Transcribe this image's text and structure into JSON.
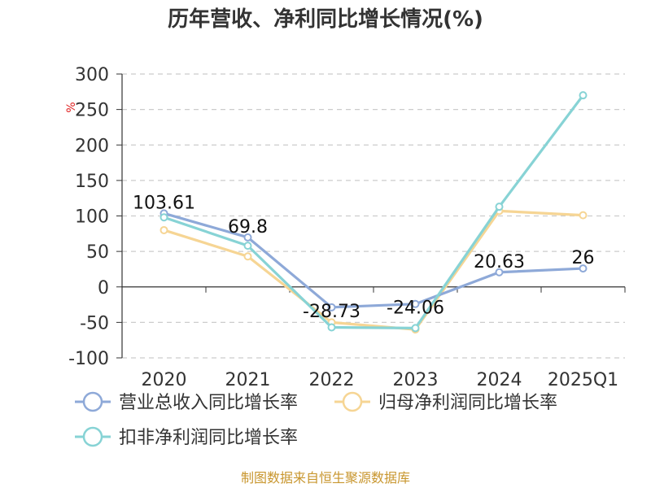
{
  "chart_data": {
    "type": "line",
    "title": "历年营收、净利同比增长情况(%)",
    "ylabel": "%",
    "xlabel": "",
    "categories": [
      "2020",
      "2021",
      "2022",
      "2023",
      "2024",
      "2025Q1"
    ],
    "ylim": [
      -100,
      300
    ],
    "yticks": [
      300,
      250,
      200,
      150,
      100,
      50,
      0,
      -50,
      -100
    ],
    "grid": true,
    "legend_position": "bottom",
    "series": [
      {
        "name": "营业总收入同比增长率",
        "values": [
          103.61,
          69.8,
          -28.73,
          -24.06,
          20.63,
          26
        ],
        "color": "#8ea9d8",
        "data_labels": [
          "103.61",
          "69.8",
          "-28.73",
          "-24.06",
          "20.63",
          "26"
        ]
      },
      {
        "name": "归母净利润同比增长率",
        "values": [
          80,
          43,
          -50,
          -60,
          107,
          101
        ],
        "color": "#f6d594"
      },
      {
        "name": "扣非净利润同比增长率",
        "values": [
          98,
          58,
          -57,
          -58,
          113,
          270
        ],
        "color": "#87d3d5"
      }
    ]
  },
  "source": "制图数据来自恒生聚源数据库"
}
